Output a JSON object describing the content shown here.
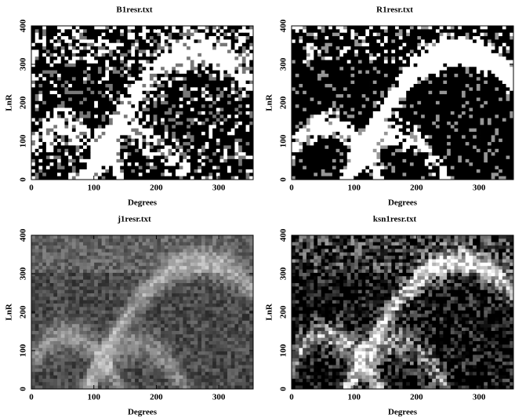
{
  "chart_data": [
    {
      "type": "heatmap",
      "title": "B1resr.txt",
      "xlabel": "Degrees",
      "ylabel": "LnR",
      "xlim": [
        0,
        355
      ],
      "ylim": [
        0,
        400
      ],
      "xticks": [
        0,
        100,
        200,
        300
      ],
      "yticks": [
        0,
        100,
        200,
        300,
        400
      ]
    },
    {
      "type": "heatmap",
      "title": "R1resr.txt",
      "xlabel": "Degrees",
      "ylabel": "LnR",
      "xlim": [
        0,
        355
      ],
      "ylim": [
        0,
        400
      ],
      "xticks": [
        0,
        100,
        200,
        300
      ],
      "yticks": [
        0,
        100,
        200,
        300,
        400
      ]
    },
    {
      "type": "heatmap",
      "title": "j1resr.txt",
      "xlabel": "Degrees",
      "ylabel": "LnR",
      "xlim": [
        0,
        355
      ],
      "ylim": [
        0,
        400
      ],
      "xticks": [
        0,
        100,
        200,
        300
      ],
      "yticks": [
        0,
        100,
        200,
        300,
        400
      ]
    },
    {
      "type": "heatmap",
      "title": "ksn1resr.txt",
      "xlabel": "Degrees",
      "ylabel": "LnR",
      "xlim": [
        0,
        355
      ],
      "ylim": [
        0,
        400
      ],
      "xticks": [
        0,
        100,
        200,
        300
      ],
      "yticks": [
        0,
        100,
        200,
        300,
        400
      ]
    }
  ]
}
